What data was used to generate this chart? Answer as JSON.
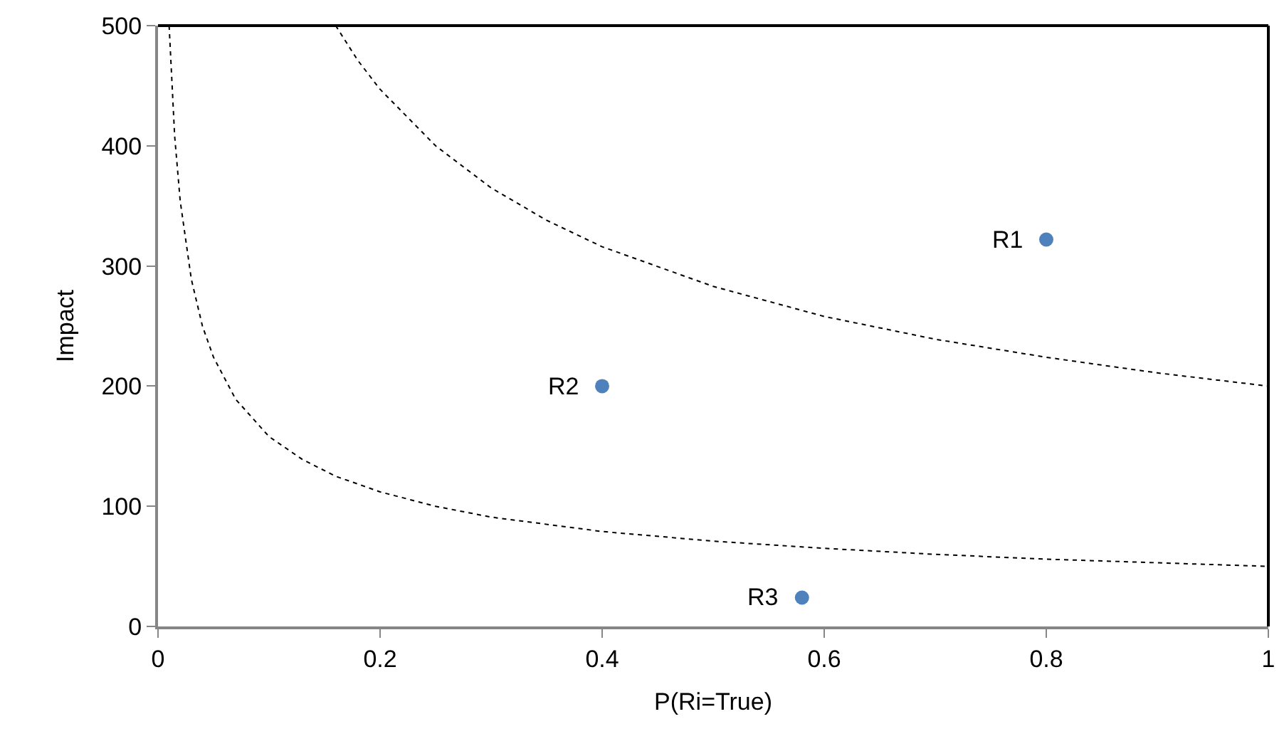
{
  "chart_data": {
    "type": "scatter",
    "xlabel": "P(Ri=True)",
    "ylabel": "Impact",
    "xlim": [
      0,
      1
    ],
    "xticks": [
      0,
      0.2,
      0.4,
      0.6,
      0.8,
      1
    ],
    "ylim": [
      0,
      500
    ],
    "yticks": [
      0,
      100,
      200,
      300,
      400,
      500
    ],
    "marker": "circle",
    "series": [
      {
        "type": "line",
        "color": "#000000",
        "line_style": "dotted",
        "marker": "none",
        "x": [
          0.01,
          0.015,
          0.02,
          0.03,
          0.04,
          0.05,
          0.07,
          0.1,
          0.13,
          0.16,
          0.2,
          0.25,
          0.3,
          0.4,
          0.5,
          0.6,
          0.7,
          0.8,
          0.9,
          1.0
        ],
        "values": [
          500,
          408,
          354,
          289,
          250,
          224,
          189,
          158,
          139,
          125,
          112,
          100,
          91,
          79,
          71,
          65,
          60,
          56,
          53,
          50
        ]
      },
      {
        "type": "line",
        "color": "#000000",
        "line_style": "dotted",
        "marker": "none",
        "x": [
          0.16,
          0.18,
          0.2,
          0.25,
          0.3,
          0.35,
          0.4,
          0.5,
          0.6,
          0.7,
          0.8,
          0.9,
          1.0
        ],
        "values": [
          500,
          471,
          447,
          400,
          365,
          338,
          316,
          283,
          258,
          239,
          224,
          211,
          200
        ]
      },
      {
        "color": "#4f81bd",
        "x": [
          0.8,
          0.4,
          0.58
        ],
        "values": [
          322,
          200,
          24
        ]
      }
    ],
    "annotations": [
      {
        "text": "R1",
        "x": 0.8,
        "y": 322
      },
      {
        "text": "R2",
        "x": 0.4,
        "y": 200
      },
      {
        "text": "R3",
        "x": 0.58,
        "y": 24
      }
    ]
  }
}
